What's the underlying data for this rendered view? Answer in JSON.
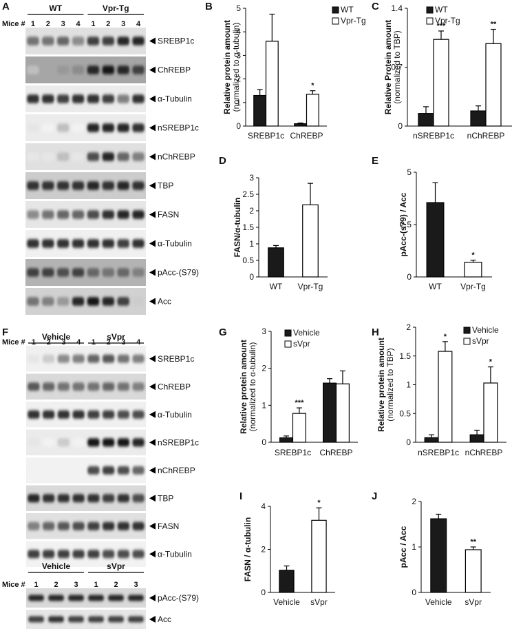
{
  "panel_letters": [
    "A",
    "B",
    "C",
    "D",
    "E",
    "F",
    "G",
    "H",
    "I",
    "J"
  ],
  "colors": {
    "bar_a": "#1a1a1a",
    "bar_b": "#ffffff",
    "axis": "#000000"
  },
  "blot_A": {
    "groups": [
      "WT",
      "Vpr-Tg"
    ],
    "mice_label": "Mice #",
    "mice": [
      "1",
      "2",
      "3",
      "4",
      "1",
      "2",
      "3",
      "4"
    ],
    "bands": [
      {
        "label": "SREBP1c",
        "intensity": [
          0.55,
          0.55,
          0.6,
          0.45,
          0.75,
          0.75,
          0.85,
          0.85
        ],
        "bg": 0.12
      },
      {
        "label": "ChREBP",
        "intensity": [
          0.25,
          0.35,
          0.4,
          0.45,
          0.85,
          0.9,
          0.85,
          0.75
        ],
        "bg": 0.35
      },
      {
        "label": "α-Tubulin",
        "intensity": [
          0.8,
          0.8,
          0.75,
          0.8,
          0.8,
          0.75,
          0.5,
          0.8
        ],
        "bg": 0.08
      },
      {
        "label": "nSREBP1c",
        "intensity": [
          0.1,
          0.05,
          0.25,
          0.05,
          0.85,
          0.85,
          0.85,
          0.8
        ],
        "bg": 0.08
      },
      {
        "label": "nChREBP",
        "intensity": [
          0.1,
          0.1,
          0.25,
          0.1,
          0.7,
          0.85,
          0.6,
          0.5
        ],
        "bg": 0.12
      },
      {
        "label": "TBP",
        "intensity": [
          0.8,
          0.8,
          0.8,
          0.8,
          0.85,
          0.8,
          0.85,
          0.8
        ],
        "bg": 0.2
      },
      {
        "label": "FASN",
        "intensity": [
          0.45,
          0.55,
          0.6,
          0.6,
          0.7,
          0.8,
          0.85,
          0.85
        ],
        "bg": 0.1
      },
      {
        "label": "α-Tubulin",
        "intensity": [
          0.8,
          0.8,
          0.8,
          0.8,
          0.8,
          0.8,
          0.75,
          0.8
        ],
        "bg": 0.06
      },
      {
        "label": "pAcc-(S79)",
        "intensity": [
          0.75,
          0.75,
          0.7,
          0.75,
          0.6,
          0.55,
          0.6,
          0.5
        ],
        "bg": 0.3
      },
      {
        "label": "Acc",
        "intensity": [
          0.55,
          0.5,
          0.4,
          0.85,
          0.9,
          0.85,
          0.75,
          0.2
        ],
        "bg": 0.18
      }
    ]
  },
  "blot_F": {
    "groups": [
      "Vehicle",
      "sVpr"
    ],
    "mice_label": "Mice #",
    "mice": [
      "1",
      "2",
      "3",
      "4",
      "1",
      "2",
      "3",
      "4"
    ],
    "bands": [
      {
        "label": "SREBP1c",
        "intensity": [
          0.1,
          0.2,
          0.45,
          0.5,
          0.6,
          0.65,
          0.55,
          0.5
        ],
        "bg": 0.06
      },
      {
        "label": "ChREBP",
        "intensity": [
          0.65,
          0.6,
          0.55,
          0.55,
          0.55,
          0.6,
          0.55,
          0.5
        ],
        "bg": 0.15
      },
      {
        "label": "α-Tubulin",
        "intensity": [
          0.8,
          0.8,
          0.8,
          0.8,
          0.75,
          0.75,
          0.7,
          0.7
        ],
        "bg": 0.06
      },
      {
        "label": "nSREBP1c",
        "intensity": [
          0.1,
          0.05,
          0.2,
          0.05,
          0.9,
          0.9,
          0.9,
          0.85
        ],
        "bg": 0.08
      },
      {
        "label": "nChREBP",
        "intensity": [
          0.05,
          0.05,
          0.05,
          0.05,
          0.7,
          0.75,
          0.7,
          0.6
        ],
        "bg": 0.05
      },
      {
        "label": "TBP",
        "intensity": [
          0.85,
          0.8,
          0.8,
          0.8,
          0.8,
          0.75,
          0.8,
          0.7
        ],
        "bg": 0.15
      },
      {
        "label": "FASN",
        "intensity": [
          0.5,
          0.6,
          0.65,
          0.7,
          0.75,
          0.8,
          0.8,
          0.8
        ],
        "bg": 0.12
      },
      {
        "label": "α-Tubulin",
        "intensity": [
          0.75,
          0.75,
          0.75,
          0.75,
          0.75,
          0.7,
          0.7,
          0.7
        ],
        "bg": 0.05
      }
    ],
    "sub_groups": [
      "Vehicle",
      "sVpr"
    ],
    "sub_mice": [
      "1",
      "2",
      "3",
      "1",
      "2",
      "3"
    ],
    "sub_bands": [
      {
        "label": "pAcc-(S79)",
        "intensity": [
          0.85,
          0.85,
          0.85,
          0.85,
          0.85,
          0.85
        ],
        "bg": 0.15
      },
      {
        "label": "Acc",
        "intensity": [
          0.75,
          0.8,
          0.75,
          0.75,
          0.75,
          0.75
        ],
        "bg": 0.1
      }
    ]
  },
  "chart_data": [
    {
      "panel": "B",
      "type": "bar",
      "ylabel": "Relative protein amount",
      "ylabel2": "(normalized to α-tubulin)",
      "categories": [
        "SREBP1c",
        "ChREBP"
      ],
      "ylim": [
        0,
        5
      ],
      "yticks": [
        "0",
        "1",
        "2",
        "3",
        "4",
        "5"
      ],
      "legend": [
        "WT",
        "Vpr-Tg"
      ],
      "legend_pos": "top-left",
      "series": [
        {
          "name": "WT",
          "values": [
            1.3,
            0.1
          ],
          "errors": [
            0.25,
            0.03
          ]
        },
        {
          "name": "Vpr-Tg",
          "values": [
            3.6,
            1.35
          ],
          "errors": [
            1.15,
            0.15
          ]
        }
      ],
      "annotations": [
        {
          "series": 1,
          "index": 1,
          "text": "*"
        }
      ]
    },
    {
      "panel": "C",
      "type": "bar",
      "ylabel": "Relative Protein amount",
      "ylabel2": "(normalized to TBP)",
      "categories": [
        "nSREBP1c",
        "nChREBP"
      ],
      "ylim": [
        0,
        1.4
      ],
      "yticks": [
        "0",
        "0.7",
        "1.4"
      ],
      "legend": [
        "WT",
        "Vpr-Tg"
      ],
      "legend_pos": "top-left",
      "series": [
        {
          "name": "WT",
          "values": [
            0.15,
            0.18
          ],
          "errors": [
            0.08,
            0.06
          ]
        },
        {
          "name": "Vpr-Tg",
          "values": [
            1.03,
            0.98
          ],
          "errors": [
            0.1,
            0.17
          ]
        }
      ],
      "annotations": [
        {
          "series": 1,
          "index": 0,
          "text": "***"
        },
        {
          "series": 1,
          "index": 1,
          "text": "**"
        }
      ]
    },
    {
      "panel": "D",
      "type": "bar",
      "ylabel": "FASN/α-tubulin",
      "ylabel2": "",
      "categories": [
        "WT",
        "Vpr-Tg"
      ],
      "ylim": [
        0,
        3
      ],
      "yticks": [
        "0",
        "0.5",
        "1",
        "1.5",
        "2",
        "2.5",
        "3"
      ],
      "legend": [],
      "legend_pos": "",
      "series": [
        {
          "name": "",
          "values": [
            0.88,
            2.18
          ],
          "errors": [
            0.07,
            0.65
          ],
          "fills": [
            "#1a1a1a",
            "#ffffff"
          ]
        }
      ],
      "annotations": []
    },
    {
      "panel": "E",
      "type": "bar",
      "ylabel": "pAcc-(s79) / Acc",
      "ylabel2": "",
      "categories": [
        "WT",
        "Vpr-Tg"
      ],
      "ylim": [
        0,
        5
      ],
      "yticks": [
        "0",
        "2.5",
        "5"
      ],
      "legend": [],
      "legend_pos": "",
      "series": [
        {
          "name": "",
          "values": [
            3.55,
            0.7
          ],
          "errors": [
            0.95,
            0.1
          ],
          "fills": [
            "#1a1a1a",
            "#ffffff"
          ]
        }
      ],
      "annotations": [
        {
          "series": 0,
          "index": 1,
          "text": "*"
        }
      ]
    },
    {
      "panel": "G",
      "type": "bar",
      "ylabel": "Relative protein amount",
      "ylabel2": "(normalized to α-tubulin)",
      "categories": [
        "SREBP1c",
        "ChREBP"
      ],
      "ylim": [
        0,
        3
      ],
      "yticks": [
        "0",
        "1",
        "2",
        "3"
      ],
      "legend": [
        "Vehicle",
        "sVpr"
      ],
      "legend_pos": "top-left",
      "series": [
        {
          "name": "Vehicle",
          "values": [
            0.12,
            1.6
          ],
          "errors": [
            0.05,
            0.12
          ]
        },
        {
          "name": "sVpr",
          "values": [
            0.78,
            1.58
          ],
          "errors": [
            0.15,
            0.35
          ]
        }
      ],
      "annotations": [
        {
          "series": 1,
          "index": 0,
          "text": "***"
        }
      ]
    },
    {
      "panel": "H",
      "type": "bar",
      "ylabel": "Relative protein amount",
      "ylabel2": "(normalized to TBP)",
      "categories": [
        "nSREBP1c",
        "nChREBP"
      ],
      "ylim": [
        0,
        2
      ],
      "yticks": [
        "0",
        "0.5",
        "1",
        "1.5",
        "2"
      ],
      "legend": [
        "Vehicle",
        "sVpr"
      ],
      "legend_pos": "top-right",
      "series": [
        {
          "name": "Vehicle",
          "values": [
            0.08,
            0.13
          ],
          "errors": [
            0.05,
            0.08
          ]
        },
        {
          "name": "sVpr",
          "values": [
            1.58,
            1.03
          ],
          "errors": [
            0.17,
            0.28
          ]
        }
      ],
      "annotations": [
        {
          "series": 1,
          "index": 0,
          "text": "*"
        },
        {
          "series": 1,
          "index": 1,
          "text": "*"
        }
      ]
    },
    {
      "panel": "I",
      "type": "bar",
      "ylabel": "FASN / α-tubulin",
      "ylabel2": "",
      "categories": [
        "Vehicle",
        "sVpr"
      ],
      "ylim": [
        0,
        4
      ],
      "yticks": [
        "0",
        "2",
        "4"
      ],
      "legend": [],
      "legend_pos": "",
      "series": [
        {
          "name": "",
          "values": [
            1.03,
            3.35
          ],
          "errors": [
            0.2,
            0.58
          ],
          "fills": [
            "#1a1a1a",
            "#ffffff"
          ]
        }
      ],
      "annotations": [
        {
          "series": 0,
          "index": 1,
          "text": "*"
        }
      ]
    },
    {
      "panel": "J",
      "type": "bar",
      "ylabel": "pAcc / Acc",
      "ylabel2": "",
      "categories": [
        "Vehicle",
        "sVpr"
      ],
      "ylim": [
        0,
        2
      ],
      "yticks": [
        "0",
        "1",
        "2"
      ],
      "legend": [],
      "legend_pos": "",
      "series": [
        {
          "name": "",
          "values": [
            1.62,
            0.94
          ],
          "errors": [
            0.1,
            0.06
          ],
          "fills": [
            "#1a1a1a",
            "#ffffff"
          ]
        }
      ],
      "annotations": [
        {
          "series": 0,
          "index": 1,
          "text": "**"
        }
      ]
    }
  ]
}
